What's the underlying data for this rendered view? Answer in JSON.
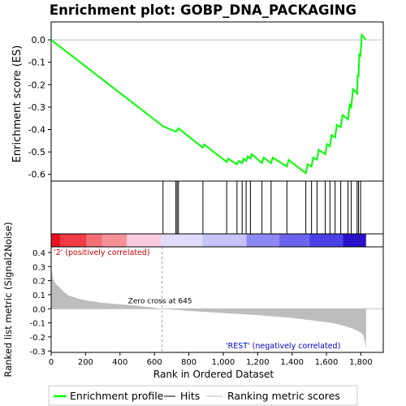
{
  "chart_data": {
    "type": "line",
    "title": "Enrichment plot: GOBP_DNA_PACKAGING",
    "es_panel": {
      "ylabel": "Enrichment score (ES)",
      "ylim": [
        -0.63,
        0.08
      ],
      "yticks": [
        0.0,
        -0.1,
        -0.2,
        -0.3,
        -0.4,
        -0.5,
        -0.6
      ],
      "ytick_labels": [
        "0.0",
        "-0.1",
        "-0.2",
        "-0.3",
        "-0.4",
        "-0.5",
        "-0.6"
      ],
      "line_color": "#00ff00",
      "series": [
        {
          "x": [
            0,
            650,
            725,
            740,
            880,
            890,
            1020,
            1028,
            1080,
            1090,
            1110,
            1118,
            1133,
            1143,
            1158,
            1166,
            1225,
            1235,
            1278,
            1288,
            1370,
            1380,
            1480,
            1490,
            1513,
            1523,
            1545,
            1555,
            1593,
            1603,
            1620,
            1630,
            1650,
            1660,
            1683,
            1693,
            1725,
            1735,
            1744,
            1754,
            1778,
            1782,
            1786,
            1791,
            1798,
            1805,
            1830
          ],
          "y": [
            0.0,
            -0.385,
            -0.41,
            -0.395,
            -0.48,
            -0.467,
            -0.545,
            -0.53,
            -0.555,
            -0.54,
            -0.55,
            -0.53,
            -0.54,
            -0.52,
            -0.53,
            -0.51,
            -0.55,
            -0.525,
            -0.55,
            -0.525,
            -0.565,
            -0.535,
            -0.595,
            -0.555,
            -0.565,
            -0.525,
            -0.535,
            -0.49,
            -0.51,
            -0.465,
            -0.475,
            -0.425,
            -0.435,
            -0.38,
            -0.39,
            -0.335,
            -0.355,
            -0.29,
            -0.3,
            -0.22,
            -0.24,
            -0.155,
            -0.165,
            -0.065,
            -0.07,
            0.022,
            0.0
          ]
        }
      ]
    },
    "hits_panel": {
      "hit_positions": [
        650,
        725,
        732,
        740,
        882,
        1020,
        1080,
        1110,
        1133,
        1158,
        1225,
        1278,
        1370,
        1480,
        1513,
        1545,
        1593,
        1620,
        1650,
        1683,
        1725,
        1744,
        1778,
        1786,
        1798
      ],
      "line_color": "#000000"
    },
    "ranking_bar": {
      "label_positive": "'2' (positively correlated)",
      "label_negative": "'REST' (negatively correlated)",
      "label_positive_color": "#cc0000",
      "label_negative_color": "#0000cc",
      "segments": [
        {
          "from": 0,
          "to": 55,
          "color": "#e8121f"
        },
        {
          "from": 55,
          "to": 205,
          "color": "#f03a44"
        },
        {
          "from": 205,
          "to": 295,
          "color": "#f36f76"
        },
        {
          "from": 295,
          "to": 440,
          "color": "#f69197"
        },
        {
          "from": 440,
          "to": 640,
          "color": "#fbcbe2"
        },
        {
          "from": 640,
          "to": 880,
          "color": "#e0dcfb"
        },
        {
          "from": 880,
          "to": 1135,
          "color": "#c8c4f9"
        },
        {
          "from": 1135,
          "to": 1325,
          "color": "#8e88f2"
        },
        {
          "from": 1325,
          "to": 1500,
          "color": "#6c64ee"
        },
        {
          "from": 1500,
          "to": 1695,
          "color": "#4b40e7"
        },
        {
          "from": 1695,
          "to": 1830,
          "color": "#2a10c8"
        }
      ]
    },
    "metric_panel": {
      "ylabel": "Ranked list metric (Signal2Noise)",
      "ylim": [
        -0.31,
        0.44
      ],
      "yticks": [
        0.4,
        0.3,
        0.2,
        0.1,
        0.0,
        -0.1,
        -0.2,
        -0.3
      ],
      "ytick_labels": [
        "0.4",
        "0.3",
        "0.2",
        "0.1",
        "0.0",
        "-0.1",
        "-0.2",
        "-0.3"
      ],
      "fill_color": "#bdbdbd",
      "zero_cross": 645,
      "zero_cross_label": "Zero cross at 645",
      "curve": {
        "x": [
          0,
          10,
          25,
          50,
          75,
          100,
          150,
          200,
          300,
          400,
          500,
          645,
          800,
          1000,
          1200,
          1400,
          1500,
          1600,
          1650,
          1700,
          1750,
          1780,
          1800,
          1815,
          1825,
          1830
        ],
        "y": [
          0.3,
          0.22,
          0.18,
          0.15,
          0.12,
          0.095,
          0.075,
          0.06,
          0.042,
          0.032,
          0.022,
          0.0,
          -0.015,
          -0.03,
          -0.045,
          -0.065,
          -0.08,
          -0.095,
          -0.105,
          -0.12,
          -0.14,
          -0.155,
          -0.17,
          -0.19,
          -0.24,
          -0.28
        ]
      }
    },
    "xaxis": {
      "xlabel": "Rank in Ordered Dataset",
      "xlim": [
        0,
        1930
      ],
      "xticks": [
        0,
        200,
        400,
        600,
        800,
        1000,
        1200,
        1400,
        1600,
        1800
      ],
      "xtick_labels": [
        "0",
        "200",
        "400",
        "600",
        "800",
        "1,000",
        "1,200",
        "1,400",
        "1,600",
        "1,800"
      ]
    },
    "legend": {
      "placement": "bottom",
      "items": [
        {
          "label": "Enrichment profile",
          "color": "#00ff00"
        },
        {
          "label": "Hits",
          "color": "#000000"
        },
        {
          "label": "Ranking metric scores",
          "color": "#bdbdbd"
        }
      ]
    }
  }
}
